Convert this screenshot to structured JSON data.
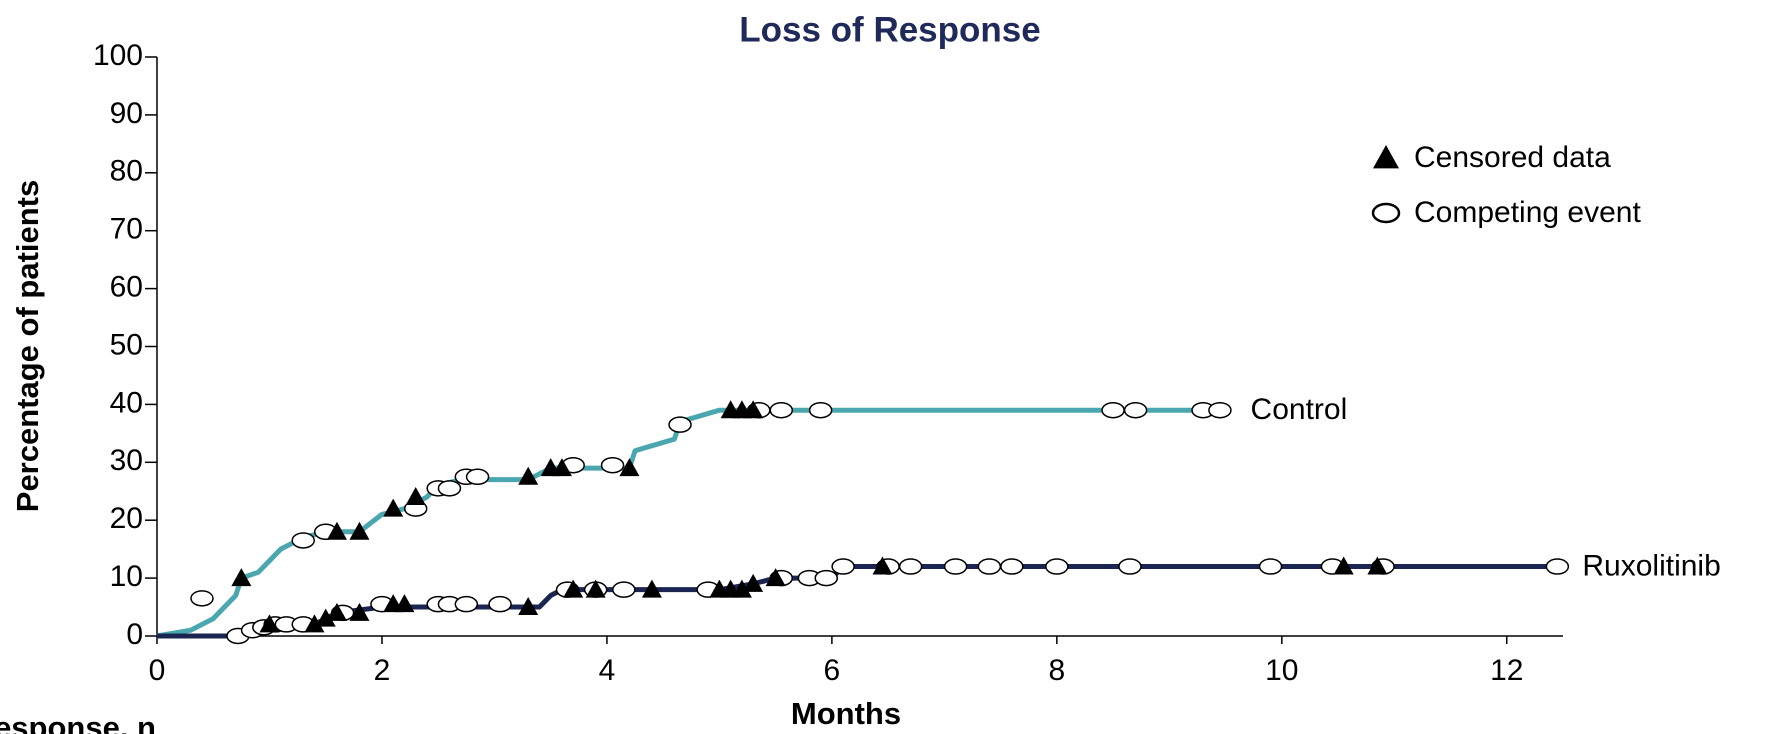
{
  "chart_data": {
    "type": "line",
    "title": "Loss of Response",
    "xlabel": "Months",
    "ylabel": "Percentage of patients",
    "footnote": "response, n",
    "xlim": [
      0,
      12.5
    ],
    "xticks": [
      0,
      2,
      4,
      6,
      8,
      10,
      12
    ],
    "ylim": [
      0,
      100
    ],
    "yticks": [
      0,
      10,
      20,
      30,
      40,
      50,
      60,
      70,
      80,
      90,
      100
    ],
    "marker_legend": [
      {
        "name": "Censored data",
        "marker": "triangle"
      },
      {
        "name": "Competing event",
        "marker": "circle"
      }
    ],
    "series": [
      {
        "name": "Control",
        "color": "#4aa7b0",
        "x": [
          0,
          0.3,
          0.4,
          0.5,
          0.6,
          0.7,
          0.75,
          0.9,
          1.0,
          1.1,
          1.3,
          1.5,
          1.8,
          2.0,
          2.2,
          2.4,
          2.5,
          2.7,
          3.3,
          3.5,
          4.2,
          4.25,
          4.6,
          4.65,
          5.0,
          9.5
        ],
        "values": [
          0,
          1,
          2,
          3,
          5,
          7,
          10,
          11,
          13,
          15,
          17,
          18,
          18,
          21,
          22,
          24,
          26,
          27,
          27,
          29,
          29,
          32,
          34,
          37,
          39,
          39
        ],
        "censored_x": [
          0.75,
          1.6,
          1.8,
          2.1,
          2.3,
          3.3,
          3.5,
          3.6,
          4.2,
          5.1,
          5.2,
          5.3
        ],
        "censored_values": [
          10,
          18,
          18,
          22,
          24,
          27.5,
          29,
          29,
          29,
          39,
          39,
          39
        ],
        "competing_x": [
          0.4,
          1.3,
          1.5,
          2.3,
          2.5,
          2.6,
          2.75,
          2.85,
          3.7,
          4.05,
          4.65,
          5.35,
          5.55,
          5.9,
          8.5,
          8.7,
          9.3,
          9.45
        ],
        "competing_values": [
          6.5,
          16.5,
          18,
          22,
          25.5,
          25.5,
          27.5,
          27.5,
          29.5,
          29.5,
          36.5,
          39,
          39,
          39,
          39,
          39,
          39,
          39
        ]
      },
      {
        "name": "Ruxolitinib",
        "color": "#1b2552",
        "x": [
          0,
          0.7,
          0.8,
          1.0,
          1.4,
          1.5,
          1.6,
          2.0,
          3.4,
          3.5,
          3.6,
          5.0,
          5.3,
          5.5,
          6.0,
          6.1,
          12.45
        ],
        "values": [
          0,
          0,
          1,
          2,
          2,
          3,
          4,
          5,
          5,
          7,
          8,
          8,
          9,
          10,
          10,
          12,
          12
        ],
        "censored_x": [
          1.0,
          1.4,
          1.5,
          1.6,
          1.8,
          2.1,
          2.2,
          3.3,
          3.7,
          3.9,
          4.4,
          5.0,
          5.1,
          5.2,
          5.3,
          5.5,
          6.45,
          10.55,
          10.85
        ],
        "censored_values": [
          2,
          2,
          3,
          4,
          4,
          5.5,
          5.5,
          5,
          8,
          8,
          8,
          8,
          8,
          8,
          9,
          10,
          12,
          12,
          12
        ],
        "competing_x": [
          0.72,
          0.85,
          0.95,
          1.05,
          1.15,
          1.3,
          1.65,
          2.0,
          2.5,
          2.6,
          2.75,
          3.05,
          3.65,
          3.9,
          4.15,
          4.9,
          5.55,
          5.8,
          5.95,
          6.1,
          6.5,
          6.7,
          7.1,
          7.4,
          7.6,
          8.0,
          8.65,
          9.9,
          10.45,
          10.9,
          12.45
        ],
        "competing_values": [
          0,
          1,
          1.5,
          2,
          2,
          2,
          4,
          5.5,
          5.5,
          5.5,
          5.5,
          5.5,
          8,
          8,
          8,
          8,
          10,
          10,
          10,
          12,
          12,
          12,
          12,
          12,
          12,
          12,
          12,
          12,
          12,
          12,
          12
        ]
      }
    ]
  }
}
